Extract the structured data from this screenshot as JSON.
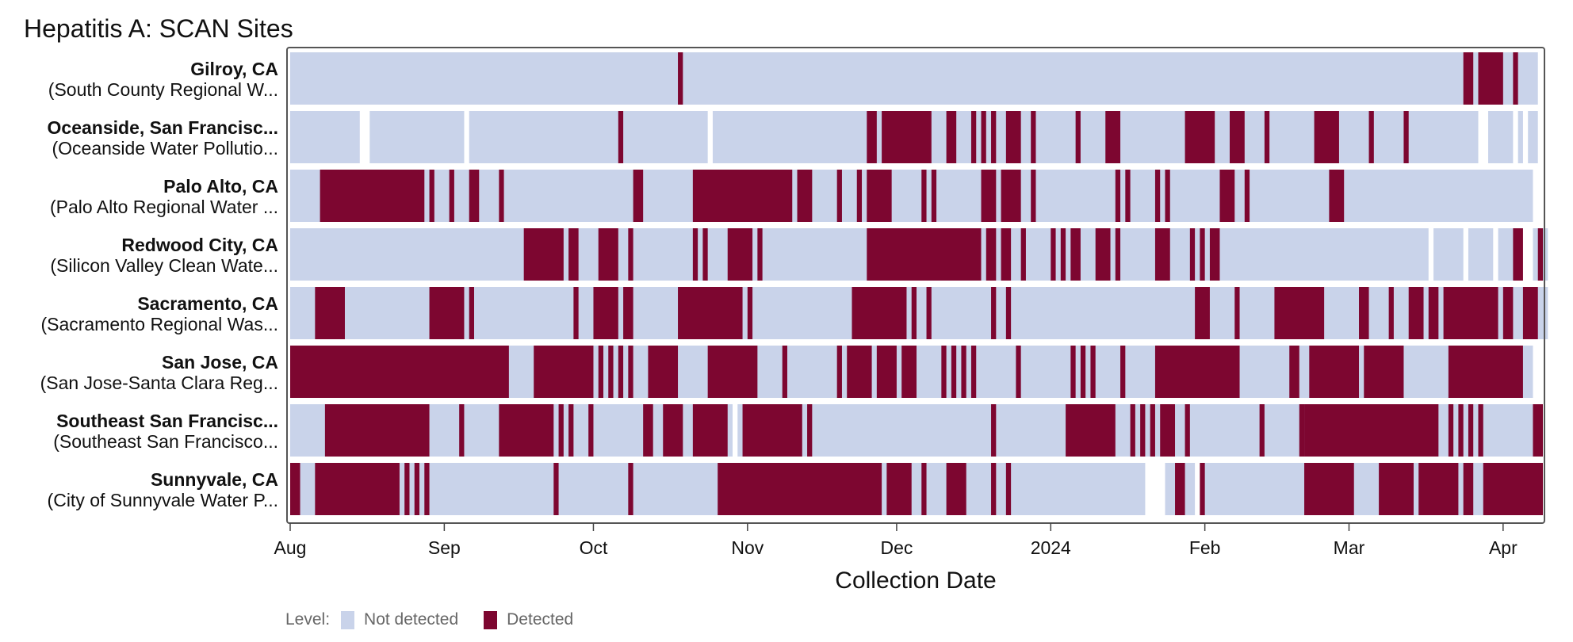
{
  "chart_data": {
    "type": "heatmap",
    "title": "Hepatitis A: SCAN Sites",
    "xlabel": "Collection Date",
    "x_range": [
      "2023-08-01",
      "2024-04-09"
    ],
    "x_ticks": [
      {
        "date": "2023-08-01",
        "label": "Aug"
      },
      {
        "date": "2023-09-01",
        "label": "Sep"
      },
      {
        "date": "2023-10-01",
        "label": "Oct"
      },
      {
        "date": "2023-11-01",
        "label": "Nov"
      },
      {
        "date": "2023-12-01",
        "label": "Dec"
      },
      {
        "date": "2024-01-01",
        "label": "2024"
      },
      {
        "date": "2024-02-01",
        "label": "Feb"
      },
      {
        "date": "2024-03-01",
        "label": "Mar"
      },
      {
        "date": "2024-04-01",
        "label": "Apr"
      }
    ],
    "legend": {
      "title": "Level:",
      "position": "bottom-left",
      "items": [
        {
          "label": "Not detected",
          "color": "#c9d3ea"
        },
        {
          "label": "Detected",
          "color": "#7d0630"
        }
      ]
    },
    "sites": [
      {
        "name": "Gilroy, CA",
        "plant": "(South County Regional W...",
        "coverage": [
          [
            "2023-08-01",
            "2024-04-08"
          ]
        ],
        "detected": [
          [
            "2023-10-18",
            "2023-10-19"
          ],
          [
            "2024-03-24",
            "2024-03-26"
          ],
          [
            "2024-03-27",
            "2024-04-01"
          ],
          [
            "2024-04-03",
            "2024-04-04"
          ]
        ]
      },
      {
        "name": "Oceanside, San Francisc...",
        "plant": "(Oceanside Water Pollutio...",
        "coverage": [
          [
            "2023-08-01",
            "2023-08-15"
          ],
          [
            "2023-08-17",
            "2023-09-05"
          ],
          [
            "2023-09-06",
            "2023-10-24"
          ],
          [
            "2023-10-25",
            "2024-03-27"
          ],
          [
            "2024-03-29",
            "2024-04-03"
          ],
          [
            "2024-04-04",
            "2024-04-05"
          ],
          [
            "2024-04-06",
            "2024-04-08"
          ]
        ],
        "detected": [
          [
            "2023-10-06",
            "2023-10-07"
          ],
          [
            "2023-11-25",
            "2023-11-27"
          ],
          [
            "2023-11-28",
            "2023-12-08"
          ],
          [
            "2023-12-11",
            "2023-12-13"
          ],
          [
            "2023-12-16",
            "2023-12-17"
          ],
          [
            "2023-12-18",
            "2023-12-19"
          ],
          [
            "2023-12-20",
            "2023-12-21"
          ],
          [
            "2023-12-23",
            "2023-12-26"
          ],
          [
            "2023-12-28",
            "2023-12-29"
          ],
          [
            "2024-01-06",
            "2024-01-07"
          ],
          [
            "2024-01-12",
            "2024-01-15"
          ],
          [
            "2024-01-28",
            "2024-02-03"
          ],
          [
            "2024-02-06",
            "2024-02-09"
          ],
          [
            "2024-02-13",
            "2024-02-14"
          ],
          [
            "2024-02-23",
            "2024-02-28"
          ],
          [
            "2024-03-05",
            "2024-03-06"
          ],
          [
            "2024-03-12",
            "2024-03-13"
          ]
        ]
      },
      {
        "name": "Palo Alto, CA",
        "plant": "(Palo Alto Regional Water ...",
        "coverage": [
          [
            "2023-08-01",
            "2023-09-12"
          ],
          [
            "2023-09-13",
            "2024-04-07"
          ]
        ],
        "detected": [
          [
            "2023-08-07",
            "2023-08-28"
          ],
          [
            "2023-08-29",
            "2023-08-30"
          ],
          [
            "2023-09-02",
            "2023-09-03"
          ],
          [
            "2023-09-06",
            "2023-09-08"
          ],
          [
            "2023-09-12",
            "2023-09-13"
          ],
          [
            "2023-10-09",
            "2023-10-11"
          ],
          [
            "2023-10-21",
            "2023-11-10"
          ],
          [
            "2023-11-11",
            "2023-11-14"
          ],
          [
            "2023-11-19",
            "2023-11-20"
          ],
          [
            "2023-11-23",
            "2023-11-24"
          ],
          [
            "2023-11-25",
            "2023-11-30"
          ],
          [
            "2023-12-06",
            "2023-12-07"
          ],
          [
            "2023-12-08",
            "2023-12-09"
          ],
          [
            "2023-12-18",
            "2023-12-21"
          ],
          [
            "2023-12-22",
            "2023-12-26"
          ],
          [
            "2023-12-28",
            "2023-12-29"
          ],
          [
            "2024-01-14",
            "2024-01-15"
          ],
          [
            "2024-01-16",
            "2024-01-17"
          ],
          [
            "2024-01-22",
            "2024-01-23"
          ],
          [
            "2024-01-24",
            "2024-01-25"
          ],
          [
            "2024-02-04",
            "2024-02-07"
          ],
          [
            "2024-02-09",
            "2024-02-10"
          ],
          [
            "2024-02-26",
            "2024-02-29"
          ]
        ]
      },
      {
        "name": "Redwood City, CA",
        "plant": "(Silicon Valley Clean Wate...",
        "coverage": [
          [
            "2023-08-01",
            "2024-03-17"
          ],
          [
            "2024-03-18",
            "2024-03-24"
          ],
          [
            "2024-03-25",
            "2024-03-30"
          ],
          [
            "2024-03-31",
            "2024-04-05"
          ],
          [
            "2024-04-07",
            "2024-04-10"
          ]
        ],
        "detected": [
          [
            "2023-09-17",
            "2023-09-25"
          ],
          [
            "2023-09-26",
            "2023-09-28"
          ],
          [
            "2023-10-02",
            "2023-10-06"
          ],
          [
            "2023-10-08",
            "2023-10-09"
          ],
          [
            "2023-10-21",
            "2023-10-22"
          ],
          [
            "2023-10-23",
            "2023-10-24"
          ],
          [
            "2023-10-28",
            "2023-11-02"
          ],
          [
            "2023-11-03",
            "2023-11-04"
          ],
          [
            "2023-11-25",
            "2023-12-18"
          ],
          [
            "2023-12-19",
            "2023-12-21"
          ],
          [
            "2023-12-22",
            "2023-12-24"
          ],
          [
            "2023-12-26",
            "2023-12-27"
          ],
          [
            "2024-01-01",
            "2024-01-02"
          ],
          [
            "2024-01-03",
            "2024-01-04"
          ],
          [
            "2024-01-05",
            "2024-01-07"
          ],
          [
            "2024-01-10",
            "2024-01-13"
          ],
          [
            "2024-01-14",
            "2024-01-15"
          ],
          [
            "2024-01-22",
            "2024-01-25"
          ],
          [
            "2024-01-29",
            "2024-01-30"
          ],
          [
            "2024-01-31",
            "2024-02-01"
          ],
          [
            "2024-02-02",
            "2024-02-04"
          ],
          [
            "2024-04-03",
            "2024-04-05"
          ],
          [
            "2024-04-08",
            "2024-04-09"
          ]
        ]
      },
      {
        "name": "Sacramento, CA",
        "plant": "(Sacramento Regional Was...",
        "coverage": [
          [
            "2023-08-01",
            "2024-04-10"
          ]
        ],
        "detected": [
          [
            "2023-08-06",
            "2023-08-12"
          ],
          [
            "2023-08-29",
            "2023-09-05"
          ],
          [
            "2023-09-06",
            "2023-09-07"
          ],
          [
            "2023-09-27",
            "2023-09-28"
          ],
          [
            "2023-10-01",
            "2023-10-06"
          ],
          [
            "2023-10-07",
            "2023-10-09"
          ],
          [
            "2023-10-18",
            "2023-10-31"
          ],
          [
            "2023-11-01",
            "2023-11-02"
          ],
          [
            "2023-11-22",
            "2023-12-03"
          ],
          [
            "2023-12-04",
            "2023-12-05"
          ],
          [
            "2023-12-07",
            "2023-12-08"
          ],
          [
            "2023-12-20",
            "2023-12-21"
          ],
          [
            "2023-12-23",
            "2023-12-24"
          ],
          [
            "2024-01-30",
            "2024-02-02"
          ],
          [
            "2024-02-07",
            "2024-02-08"
          ],
          [
            "2024-02-15",
            "2024-02-25"
          ],
          [
            "2024-03-03",
            "2024-03-05"
          ],
          [
            "2024-03-09",
            "2024-03-10"
          ],
          [
            "2024-03-13",
            "2024-03-16"
          ],
          [
            "2024-03-17",
            "2024-03-19"
          ],
          [
            "2024-03-20",
            "2024-03-31"
          ],
          [
            "2024-04-01",
            "2024-04-03"
          ],
          [
            "2024-04-05",
            "2024-04-08"
          ]
        ]
      },
      {
        "name": "San Jose, CA",
        "plant": "(San Jose-Santa Clara Reg...",
        "coverage": [
          [
            "2023-08-01",
            "2024-04-07"
          ]
        ],
        "detected": [
          [
            "2023-08-01",
            "2023-09-14"
          ],
          [
            "2023-09-19",
            "2023-10-01"
          ],
          [
            "2023-10-02",
            "2023-10-03"
          ],
          [
            "2023-10-04",
            "2023-10-05"
          ],
          [
            "2023-10-06",
            "2023-10-07"
          ],
          [
            "2023-10-08",
            "2023-10-09"
          ],
          [
            "2023-10-12",
            "2023-10-18"
          ],
          [
            "2023-10-24",
            "2023-11-03"
          ],
          [
            "2023-11-08",
            "2023-11-09"
          ],
          [
            "2023-11-19",
            "2023-11-20"
          ],
          [
            "2023-11-21",
            "2023-11-26"
          ],
          [
            "2023-11-27",
            "2023-12-01"
          ],
          [
            "2023-12-02",
            "2023-12-05"
          ],
          [
            "2023-12-10",
            "2023-12-11"
          ],
          [
            "2023-12-12",
            "2023-12-13"
          ],
          [
            "2023-12-14",
            "2023-12-15"
          ],
          [
            "2023-12-16",
            "2023-12-17"
          ],
          [
            "2023-12-25",
            "2023-12-26"
          ],
          [
            "2024-01-05",
            "2024-01-06"
          ],
          [
            "2024-01-07",
            "2024-01-08"
          ],
          [
            "2024-01-09",
            "2024-01-10"
          ],
          [
            "2024-01-15",
            "2024-01-16"
          ],
          [
            "2024-01-22",
            "2024-02-08"
          ],
          [
            "2024-02-18",
            "2024-02-20"
          ],
          [
            "2024-02-22",
            "2024-03-03"
          ],
          [
            "2024-03-04",
            "2024-03-12"
          ],
          [
            "2024-03-21",
            "2024-04-05"
          ]
        ]
      },
      {
        "name": "Southeast San Francisc...",
        "plant": "(Southeast San Francisco...",
        "coverage": [
          [
            "2023-08-01",
            "2023-10-29"
          ],
          [
            "2023-10-30",
            "2024-04-09"
          ]
        ],
        "detected": [
          [
            "2023-08-08",
            "2023-08-29"
          ],
          [
            "2023-09-04",
            "2023-09-05"
          ],
          [
            "2023-09-12",
            "2023-09-23"
          ],
          [
            "2023-09-24",
            "2023-09-25"
          ],
          [
            "2023-09-26",
            "2023-09-27"
          ],
          [
            "2023-09-30",
            "2023-10-01"
          ],
          [
            "2023-10-11",
            "2023-10-13"
          ],
          [
            "2023-10-15",
            "2023-10-19"
          ],
          [
            "2023-10-21",
            "2023-10-28"
          ],
          [
            "2023-10-31",
            "2023-11-12"
          ],
          [
            "2023-11-13",
            "2023-11-14"
          ],
          [
            "2023-12-20",
            "2023-12-21"
          ],
          [
            "2024-01-04",
            "2024-01-14"
          ],
          [
            "2024-01-17",
            "2024-01-18"
          ],
          [
            "2024-01-19",
            "2024-01-20"
          ],
          [
            "2024-01-21",
            "2024-01-22"
          ],
          [
            "2024-01-23",
            "2024-01-26"
          ],
          [
            "2024-01-28",
            "2024-01-29"
          ],
          [
            "2024-02-12",
            "2024-02-13"
          ],
          [
            "2024-02-20",
            "2024-02-21"
          ],
          [
            "2024-02-21",
            "2024-03-19"
          ],
          [
            "2024-03-21",
            "2024-03-22"
          ],
          [
            "2024-03-23",
            "2024-03-24"
          ],
          [
            "2024-03-25",
            "2024-03-26"
          ],
          [
            "2024-03-27",
            "2024-03-28"
          ],
          [
            "2024-04-07",
            "2024-04-09"
          ]
        ]
      },
      {
        "name": "Sunnyvale, CA",
        "plant": "(City of Sunnyvale Water P...",
        "coverage": [
          [
            "2023-08-01",
            "2024-01-20"
          ],
          [
            "2024-01-24",
            "2024-01-26"
          ],
          [
            "2024-01-27",
            "2024-01-30"
          ],
          [
            "2024-01-31",
            "2024-04-09"
          ]
        ],
        "detected": [
          [
            "2023-08-01",
            "2023-08-03"
          ],
          [
            "2023-08-06",
            "2023-08-23"
          ],
          [
            "2023-08-24",
            "2023-08-25"
          ],
          [
            "2023-08-26",
            "2023-08-27"
          ],
          [
            "2023-08-28",
            "2023-08-29"
          ],
          [
            "2023-09-23",
            "2023-09-24"
          ],
          [
            "2023-10-08",
            "2023-10-09"
          ],
          [
            "2023-10-26",
            "2023-11-28"
          ],
          [
            "2023-11-29",
            "2023-12-04"
          ],
          [
            "2023-12-06",
            "2023-12-07"
          ],
          [
            "2023-12-11",
            "2023-12-15"
          ],
          [
            "2023-12-20",
            "2023-12-21"
          ],
          [
            "2023-12-23",
            "2023-12-24"
          ],
          [
            "2024-01-26",
            "2024-01-28"
          ],
          [
            "2024-01-31",
            "2024-02-01"
          ],
          [
            "2024-02-21",
            "2024-03-02"
          ],
          [
            "2024-03-07",
            "2024-03-14"
          ],
          [
            "2024-03-15",
            "2024-03-23"
          ],
          [
            "2024-03-24",
            "2024-03-26"
          ],
          [
            "2024-03-28",
            "2024-04-09"
          ]
        ]
      }
    ]
  }
}
